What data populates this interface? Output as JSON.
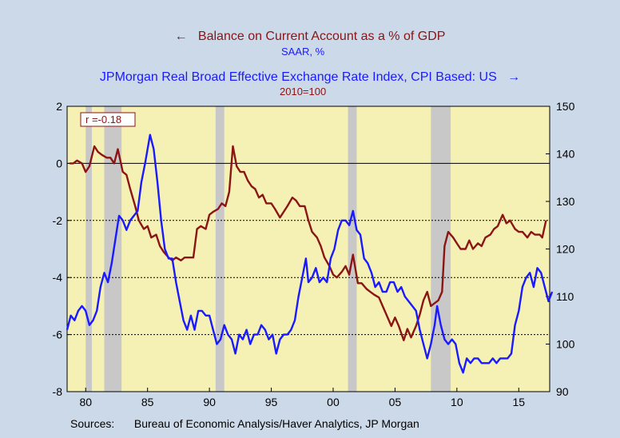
{
  "titles": {
    "title1": "Balance on Current Account as a % of GDP",
    "title1_sub": "SAAR, %",
    "title2": "JPMorgan Real Broad Effective Exchange Rate Index, CPI Based: US",
    "title2_sub": "2010=100"
  },
  "sources": {
    "label": "Sources:",
    "text": "Bureau of Economic Analysis/Haver Analytics, JP Morgan"
  },
  "colors": {
    "background": "#ccd9e8",
    "plot_area": "#f5f1b4",
    "recession": "#c8c8c8",
    "current_account": "#8b1414",
    "exchange_rate": "#1a1aff"
  },
  "chart_data": {
    "type": "line",
    "annotation": "r =-0.18",
    "x_range": [
      1978.5,
      2017.5
    ],
    "x_ticks": [
      1980,
      1985,
      1990,
      1995,
      2000,
      2005,
      2010,
      2015
    ],
    "x_tick_labels": [
      "80",
      "85",
      "90",
      "95",
      "00",
      "05",
      "10",
      "15"
    ],
    "left_axis": {
      "range": [
        -8,
        2
      ],
      "ticks": [
        -8,
        -6,
        -4,
        -2,
        0,
        2
      ]
    },
    "right_axis": {
      "range": [
        90,
        150
      ],
      "ticks": [
        90,
        100,
        110,
        120,
        130,
        140,
        150
      ]
    },
    "reference_lines": {
      "solid": [
        0
      ],
      "dotted": [
        -2,
        -4,
        -6
      ]
    },
    "recessions": [
      [
        1980.0,
        1980.5
      ],
      [
        1981.5,
        1982.9
      ],
      [
        1990.5,
        1991.2
      ],
      [
        2001.2,
        2001.9
      ],
      [
        2007.9,
        2009.5
      ]
    ],
    "series": [
      {
        "name": "Balance on Current Account as a % of GDP",
        "axis": "left",
        "points": [
          [
            1978.7,
            0.0
          ],
          [
            1979.0,
            0.0
          ],
          [
            1979.3,
            0.1
          ],
          [
            1979.7,
            0.0
          ],
          [
            1980.0,
            -0.3
          ],
          [
            1980.3,
            -0.1
          ],
          [
            1980.7,
            0.6
          ],
          [
            1981.0,
            0.4
          ],
          [
            1981.3,
            0.3
          ],
          [
            1981.7,
            0.2
          ],
          [
            1982.0,
            0.2
          ],
          [
            1982.3,
            0.0
          ],
          [
            1982.6,
            0.5
          ],
          [
            1983.0,
            -0.3
          ],
          [
            1983.3,
            -0.4
          ],
          [
            1983.6,
            -0.9
          ],
          [
            1984.0,
            -1.5
          ],
          [
            1984.3,
            -2.0
          ],
          [
            1984.7,
            -2.3
          ],
          [
            1985.0,
            -2.2
          ],
          [
            1985.3,
            -2.6
          ],
          [
            1985.7,
            -2.5
          ],
          [
            1986.0,
            -2.9
          ],
          [
            1986.3,
            -3.1
          ],
          [
            1986.7,
            -3.3
          ],
          [
            1987.0,
            -3.4
          ],
          [
            1987.3,
            -3.3
          ],
          [
            1987.7,
            -3.4
          ],
          [
            1988.0,
            -3.3
          ],
          [
            1988.3,
            -3.3
          ],
          [
            1988.7,
            -3.3
          ],
          [
            1989.0,
            -2.3
          ],
          [
            1989.3,
            -2.2
          ],
          [
            1989.7,
            -2.3
          ],
          [
            1990.0,
            -1.8
          ],
          [
            1990.3,
            -1.7
          ],
          [
            1990.7,
            -1.6
          ],
          [
            1991.0,
            -1.4
          ],
          [
            1991.3,
            -1.5
          ],
          [
            1991.6,
            -1.0
          ],
          [
            1991.9,
            0.6
          ],
          [
            1992.2,
            -0.1
          ],
          [
            1992.5,
            -0.3
          ],
          [
            1992.8,
            -0.3
          ],
          [
            1993.1,
            -0.6
          ],
          [
            1993.4,
            -0.8
          ],
          [
            1993.7,
            -0.9
          ],
          [
            1994.0,
            -1.2
          ],
          [
            1994.3,
            -1.1
          ],
          [
            1994.6,
            -1.4
          ],
          [
            1995.0,
            -1.4
          ],
          [
            1995.3,
            -1.6
          ],
          [
            1995.7,
            -1.9
          ],
          [
            1996.0,
            -1.7
          ],
          [
            1996.3,
            -1.5
          ],
          [
            1996.7,
            -1.2
          ],
          [
            1997.0,
            -1.3
          ],
          [
            1997.3,
            -1.5
          ],
          [
            1997.7,
            -1.5
          ],
          [
            1998.0,
            -2.0
          ],
          [
            1998.3,
            -2.4
          ],
          [
            1998.7,
            -2.6
          ],
          [
            1999.0,
            -2.9
          ],
          [
            1999.3,
            -3.3
          ],
          [
            1999.7,
            -3.6
          ],
          [
            2000.0,
            -3.9
          ],
          [
            2000.3,
            -4.0
          ],
          [
            2000.7,
            -3.8
          ],
          [
            2001.0,
            -3.6
          ],
          [
            2001.3,
            -3.9
          ],
          [
            2001.6,
            -3.2
          ],
          [
            2002.0,
            -4.2
          ],
          [
            2002.3,
            -4.2
          ],
          [
            2002.7,
            -4.4
          ],
          [
            2003.0,
            -4.5
          ],
          [
            2003.3,
            -4.6
          ],
          [
            2003.7,
            -4.7
          ],
          [
            2004.0,
            -5.0
          ],
          [
            2004.3,
            -5.3
          ],
          [
            2004.7,
            -5.7
          ],
          [
            2005.0,
            -5.4
          ],
          [
            2005.3,
            -5.7
          ],
          [
            2005.7,
            -6.2
          ],
          [
            2006.0,
            -5.8
          ],
          [
            2006.3,
            -6.1
          ],
          [
            2006.7,
            -5.7
          ],
          [
            2007.0,
            -5.3
          ],
          [
            2007.3,
            -4.8
          ],
          [
            2007.6,
            -4.5
          ],
          [
            2007.9,
            -5.0
          ],
          [
            2008.2,
            -4.9
          ],
          [
            2008.5,
            -4.8
          ],
          [
            2008.8,
            -4.5
          ],
          [
            2009.0,
            -2.9
          ],
          [
            2009.3,
            -2.4
          ],
          [
            2009.7,
            -2.6
          ],
          [
            2010.0,
            -2.8
          ],
          [
            2010.3,
            -3.0
          ],
          [
            2010.7,
            -3.0
          ],
          [
            2011.0,
            -2.7
          ],
          [
            2011.3,
            -3.0
          ],
          [
            2011.7,
            -2.8
          ],
          [
            2012.0,
            -2.9
          ],
          [
            2012.3,
            -2.6
          ],
          [
            2012.7,
            -2.5
          ],
          [
            2013.0,
            -2.3
          ],
          [
            2013.3,
            -2.2
          ],
          [
            2013.7,
            -1.8
          ],
          [
            2014.0,
            -2.1
          ],
          [
            2014.3,
            -2.0
          ],
          [
            2014.7,
            -2.3
          ],
          [
            2015.0,
            -2.4
          ],
          [
            2015.3,
            -2.4
          ],
          [
            2015.7,
            -2.6
          ],
          [
            2016.0,
            -2.4
          ],
          [
            2016.3,
            -2.5
          ],
          [
            2016.7,
            -2.5
          ],
          [
            2016.9,
            -2.6
          ],
          [
            2017.2,
            -2.0
          ]
        ]
      },
      {
        "name": "JPMorgan Real Broad Effective Exchange Rate Index, CPI Based: US",
        "axis": "right",
        "points": [
          [
            1978.5,
            103
          ],
          [
            1978.8,
            106
          ],
          [
            1979.1,
            105
          ],
          [
            1979.4,
            107
          ],
          [
            1979.7,
            108
          ],
          [
            1980.0,
            107
          ],
          [
            1980.3,
            104
          ],
          [
            1980.6,
            105
          ],
          [
            1980.9,
            107
          ],
          [
            1981.2,
            112
          ],
          [
            1981.5,
            115
          ],
          [
            1981.8,
            113
          ],
          [
            1982.1,
            117
          ],
          [
            1982.4,
            122
          ],
          [
            1982.7,
            127
          ],
          [
            1983.0,
            126
          ],
          [
            1983.3,
            124
          ],
          [
            1983.6,
            126
          ],
          [
            1983.9,
            127
          ],
          [
            1984.2,
            128
          ],
          [
            1984.5,
            134
          ],
          [
            1984.8,
            138
          ],
          [
            1985.0,
            141
          ],
          [
            1985.2,
            144
          ],
          [
            1985.5,
            141
          ],
          [
            1985.8,
            134
          ],
          [
            1986.1,
            126
          ],
          [
            1986.4,
            120
          ],
          [
            1986.7,
            118
          ],
          [
            1987.0,
            118
          ],
          [
            1987.3,
            113
          ],
          [
            1987.6,
            109
          ],
          [
            1987.9,
            105
          ],
          [
            1988.2,
            103
          ],
          [
            1988.5,
            106
          ],
          [
            1988.8,
            103
          ],
          [
            1989.1,
            107
          ],
          [
            1989.4,
            107
          ],
          [
            1989.7,
            106
          ],
          [
            1990.0,
            106
          ],
          [
            1990.3,
            103
          ],
          [
            1990.6,
            100
          ],
          [
            1990.9,
            101
          ],
          [
            1991.2,
            104
          ],
          [
            1991.5,
            102
          ],
          [
            1991.8,
            101
          ],
          [
            1992.1,
            98
          ],
          [
            1992.4,
            102
          ],
          [
            1992.7,
            101
          ],
          [
            1993.0,
            103
          ],
          [
            1993.3,
            100
          ],
          [
            1993.6,
            102
          ],
          [
            1993.9,
            102
          ],
          [
            1994.2,
            104
          ],
          [
            1994.5,
            103
          ],
          [
            1994.8,
            101
          ],
          [
            1995.1,
            102
          ],
          [
            1995.4,
            98
          ],
          [
            1995.7,
            101
          ],
          [
            1996.0,
            102
          ],
          [
            1996.3,
            102
          ],
          [
            1996.6,
            103
          ],
          [
            1996.9,
            105
          ],
          [
            1997.2,
            110
          ],
          [
            1997.5,
            114
          ],
          [
            1997.8,
            118
          ],
          [
            1998.0,
            113
          ],
          [
            1998.3,
            114
          ],
          [
            1998.6,
            116
          ],
          [
            1998.9,
            113
          ],
          [
            1999.2,
            114
          ],
          [
            1999.5,
            113
          ],
          [
            1999.8,
            118
          ],
          [
            2000.1,
            120
          ],
          [
            2000.4,
            124
          ],
          [
            2000.7,
            126
          ],
          [
            2001.0,
            126
          ],
          [
            2001.3,
            125
          ],
          [
            2001.6,
            128
          ],
          [
            2001.9,
            124
          ],
          [
            2002.2,
            123
          ],
          [
            2002.5,
            118
          ],
          [
            2002.8,
            117
          ],
          [
            2003.1,
            115
          ],
          [
            2003.4,
            112
          ],
          [
            2003.7,
            113
          ],
          [
            2004.0,
            111
          ],
          [
            2004.3,
            111
          ],
          [
            2004.6,
            113
          ],
          [
            2004.9,
            113
          ],
          [
            2005.2,
            111
          ],
          [
            2005.5,
            112
          ],
          [
            2005.8,
            110
          ],
          [
            2006.1,
            109
          ],
          [
            2006.4,
            108
          ],
          [
            2006.7,
            107
          ],
          [
            2007.0,
            103
          ],
          [
            2007.3,
            100
          ],
          [
            2007.6,
            97
          ],
          [
            2007.9,
            100
          ],
          [
            2008.2,
            104
          ],
          [
            2008.4,
            108
          ],
          [
            2008.7,
            104
          ],
          [
            2009.0,
            101
          ],
          [
            2009.3,
            100
          ],
          [
            2009.6,
            101
          ],
          [
            2009.9,
            100
          ],
          [
            2010.2,
            96
          ],
          [
            2010.5,
            94
          ],
          [
            2010.8,
            97
          ],
          [
            2011.1,
            96
          ],
          [
            2011.4,
            97
          ],
          [
            2011.7,
            97
          ],
          [
            2012.0,
            96
          ],
          [
            2012.3,
            96
          ],
          [
            2012.6,
            96
          ],
          [
            2012.9,
            97
          ],
          [
            2013.2,
            96
          ],
          [
            2013.5,
            97
          ],
          [
            2013.8,
            97
          ],
          [
            2014.1,
            97
          ],
          [
            2014.4,
            98
          ],
          [
            2014.7,
            104
          ],
          [
            2015.0,
            107
          ],
          [
            2015.3,
            112
          ],
          [
            2015.6,
            114
          ],
          [
            2015.9,
            115
          ],
          [
            2016.2,
            112
          ],
          [
            2016.5,
            116
          ],
          [
            2016.8,
            115
          ],
          [
            2017.1,
            112
          ],
          [
            2017.4,
            109
          ],
          [
            2017.7,
            111
          ]
        ]
      }
    ]
  }
}
